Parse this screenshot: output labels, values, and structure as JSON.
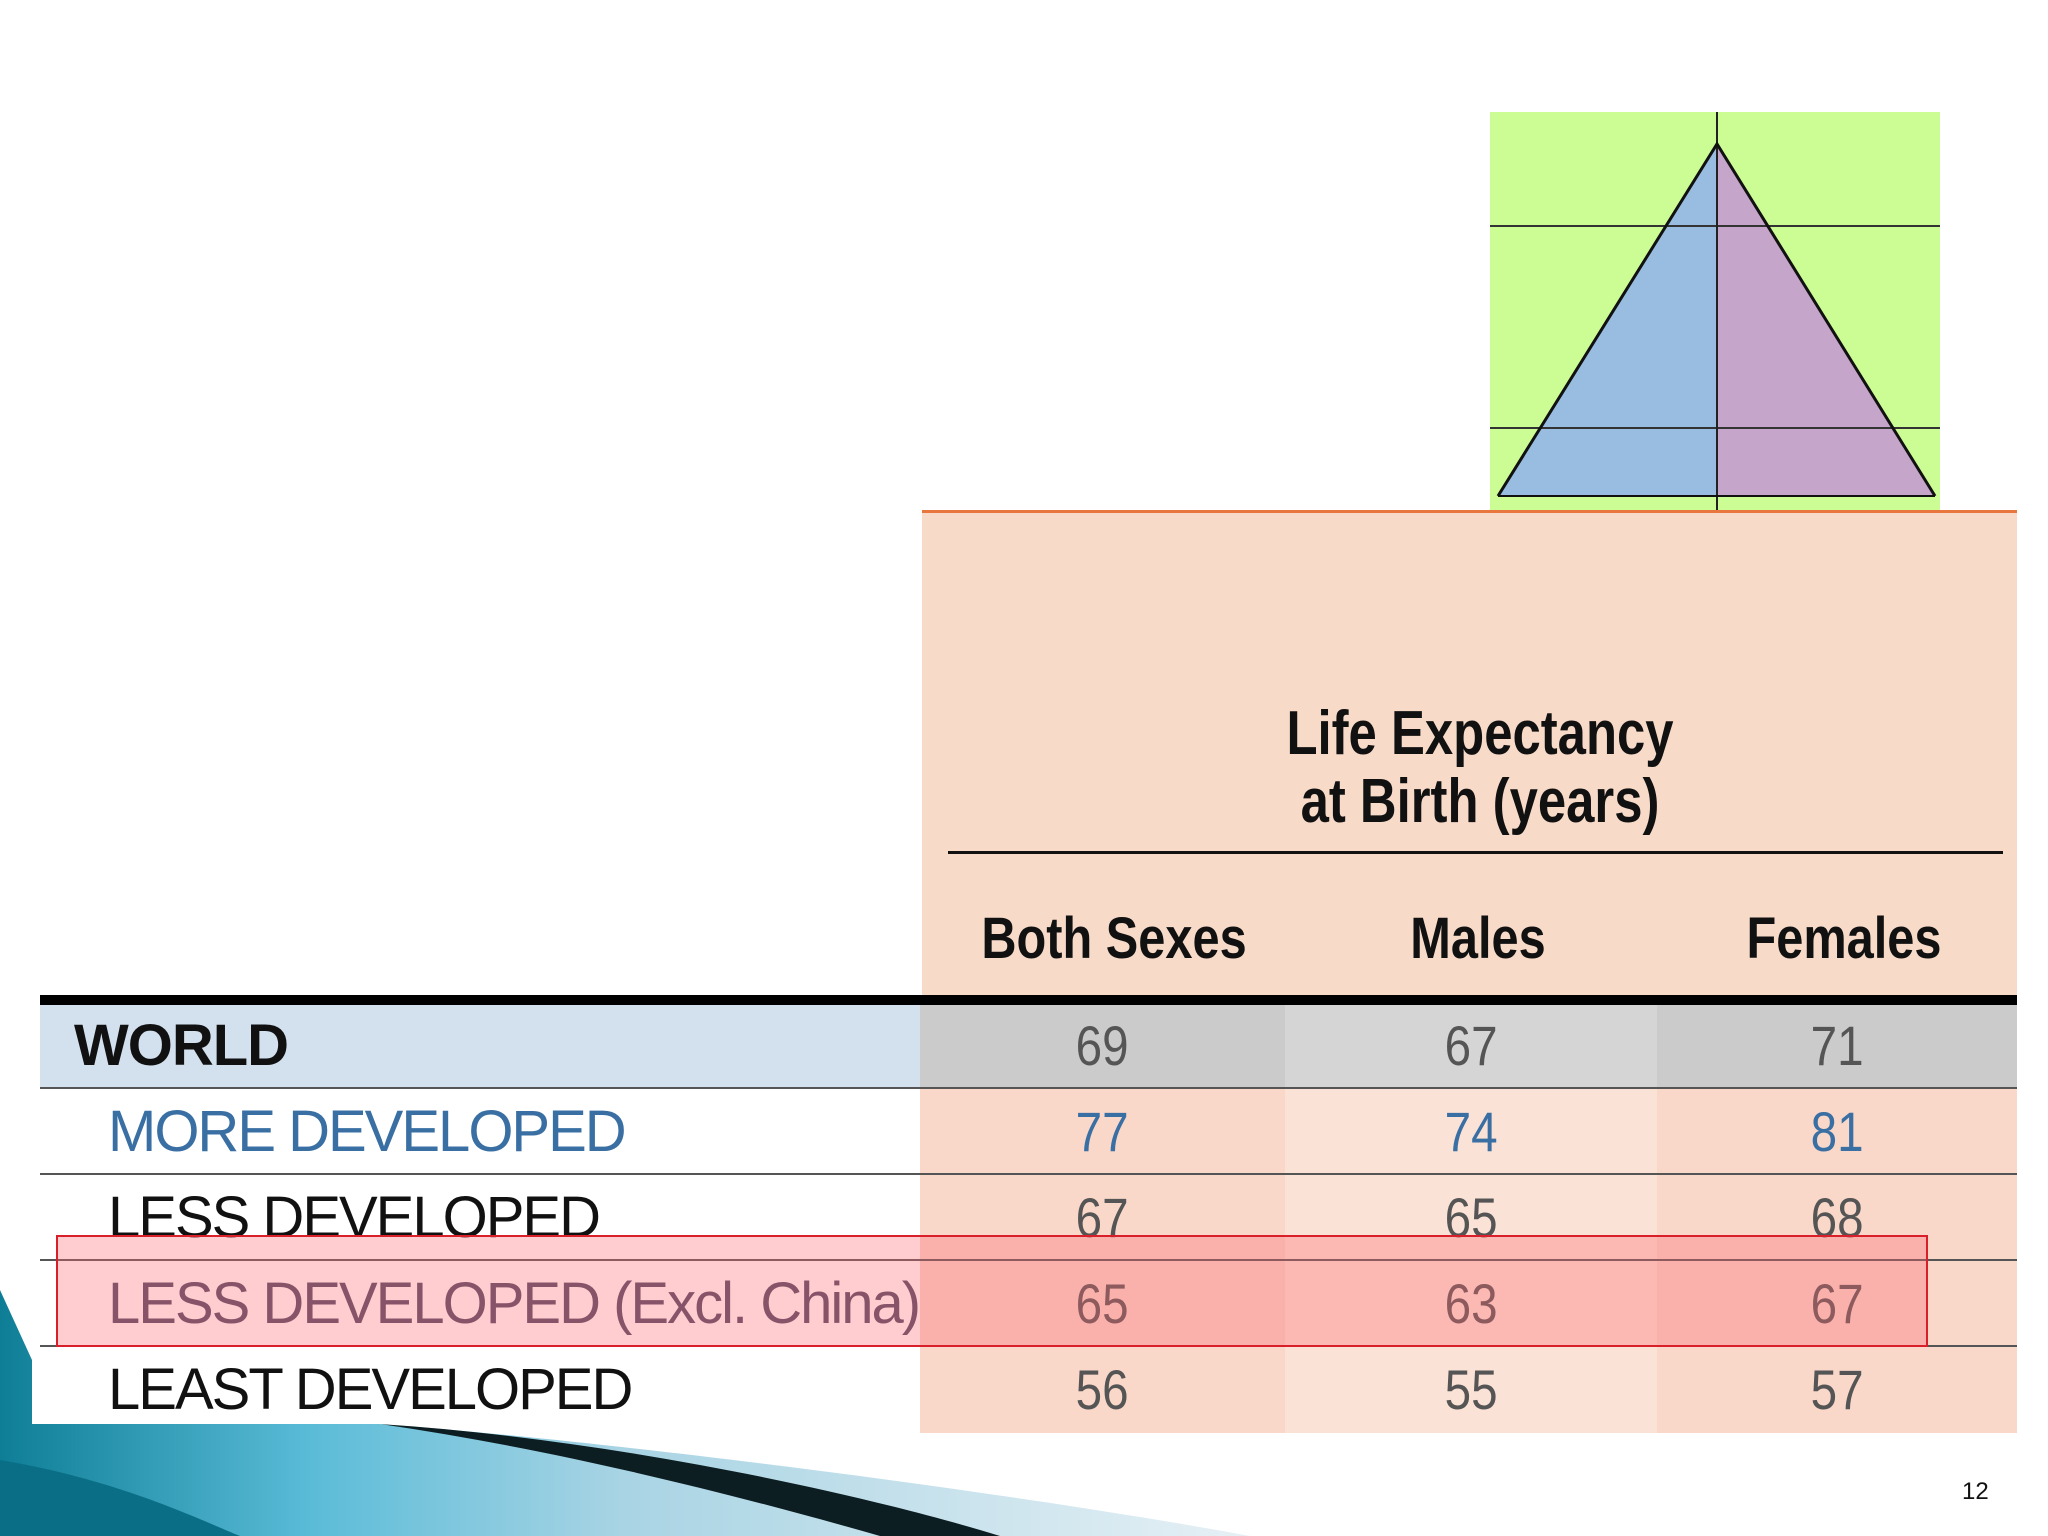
{
  "column_group_title": [
    "Life Expectancy",
    "at Birth (years)"
  ],
  "columns": [
    "Both Sexes",
    "Males",
    "Females"
  ],
  "rows": [
    {
      "label": "WORLD",
      "values": [
        "69",
        "67",
        "71"
      ]
    },
    {
      "label": "MORE DEVELOPED",
      "values": [
        "77",
        "74",
        "81"
      ]
    },
    {
      "label": "LESS DEVELOPED",
      "values": [
        "67",
        "65",
        "68"
      ]
    },
    {
      "label": "LESS DEVELOPED (Excl. China)",
      "values": [
        "65",
        "63",
        "67"
      ]
    },
    {
      "label": "LEAST DEVELOPED",
      "values": [
        "56",
        "55",
        "57"
      ]
    }
  ],
  "highlighted_row_index": 3,
  "page_number": "12",
  "colors": {
    "peach": "#f8dac9",
    "world_row": "#d3e0ee",
    "more_developed_text": "#3a6fa3",
    "highlight_border": "#d81f2a",
    "pyramid_bg": "#ccfc94",
    "pyramid_male": "#99bde0",
    "pyramid_female": "#c5a5c9"
  }
}
